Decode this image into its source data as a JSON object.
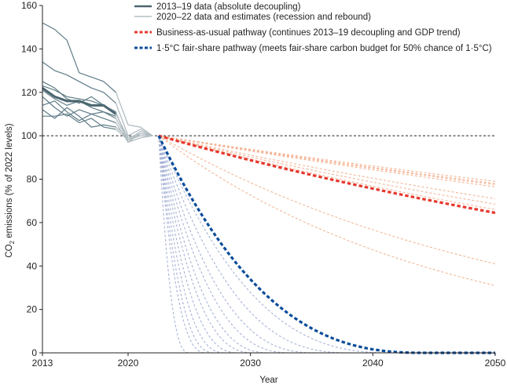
{
  "chart_data": {
    "type": "line",
    "xlabel": "Year",
    "ylabel_main": "CO",
    "ylabel_sub": "2",
    "ylabel_rest": " emissions (% of 2022 levels)",
    "xlim": [
      2013,
      2050
    ],
    "ylim": [
      0,
      160
    ],
    "x_ticks": [
      2013,
      2020,
      2030,
      2040,
      2050
    ],
    "y_ticks": [
      0,
      20,
      40,
      60,
      80,
      100,
      120,
      140,
      160
    ],
    "reference_line": {
      "y": 100,
      "style": "dashed",
      "color": "#231f20"
    },
    "colors": {
      "historical_thin": "#5f7c87",
      "historical_bold": "#4c6670",
      "recession": "#b3bec3",
      "bau_light": "#f3b596",
      "bau_bold": "#e5392f",
      "fairshare_light": "#a7b3d6",
      "fairshare_bold": "#0a4c9a"
    },
    "legend": [
      {
        "label": "2013–19 data (absolute decoupling)",
        "style": "solid",
        "color": "#4c6670"
      },
      {
        "label": "2020–22 data and estimates (recession and rebound)",
        "style": "solid",
        "color": "#b3bec3"
      },
      {
        "label": "Business-as-usual pathway (continues 2013–19 decoupling and GDP trend)",
        "style": "dashed",
        "color": "#e5392f"
      },
      {
        "label": "1·5°C fair-share pathway (meets fair-share carbon budget for 50% chance of 1·5°C)",
        "style": "dashed",
        "color": "#0a4c9a"
      }
    ],
    "series_historical": [
      {
        "x": [
          2013,
          2014,
          2015,
          2016,
          2017,
          2018,
          2019
        ],
        "y": [
          152,
          149,
          144,
          129,
          127,
          125,
          120
        ]
      },
      {
        "x": [
          2013,
          2014,
          2015,
          2016,
          2017,
          2018,
          2019
        ],
        "y": [
          134,
          130,
          128,
          125,
          122,
          120,
          115
        ]
      },
      {
        "x": [
          2013,
          2014,
          2015,
          2016,
          2017,
          2018,
          2019
        ],
        "y": [
          125,
          122,
          117,
          115,
          118,
          114,
          111
        ]
      },
      {
        "x": [
          2013,
          2014,
          2015,
          2016,
          2017,
          2018,
          2019
        ],
        "y": [
          123,
          121,
          118,
          117,
          116,
          114,
          110
        ]
      },
      {
        "x": [
          2013,
          2014,
          2015,
          2016,
          2017,
          2018,
          2019
        ],
        "y": [
          121,
          117,
          114,
          116,
          113,
          111,
          108
        ]
      },
      {
        "x": [
          2013,
          2014,
          2015,
          2016,
          2017,
          2018,
          2019
        ],
        "y": [
          118,
          113,
          109,
          112,
          110,
          108,
          106
        ]
      },
      {
        "x": [
          2013,
          2014,
          2015,
          2016,
          2017,
          2018,
          2019
        ],
        "y": [
          114,
          116,
          111,
          107,
          110,
          111,
          109
        ]
      },
      {
        "x": [
          2013,
          2014,
          2015,
          2016,
          2017,
          2018,
          2019
        ],
        "y": [
          109,
          109,
          110,
          106,
          108,
          104,
          103
        ]
      },
      {
        "x": [
          2013,
          2014,
          2015,
          2016,
          2017,
          2018,
          2019
        ],
        "y": [
          112,
          108,
          113,
          109,
          104,
          105,
          104
        ]
      }
    ],
    "series_historical_mean": {
      "x": [
        2013,
        2014,
        2015,
        2016,
        2017,
        2018,
        2019
      ],
      "y": [
        122,
        118,
        116,
        116,
        114,
        114,
        110
      ]
    },
    "series_recession": [
      {
        "x": [
          2019,
          2020,
          2021,
          2022
        ],
        "y": [
          120,
          105,
          104,
          100
        ]
      },
      {
        "x": [
          2019,
          2020,
          2021,
          2022
        ],
        "y": [
          115,
          100,
          103,
          100
        ]
      },
      {
        "x": [
          2019,
          2020,
          2021,
          2022
        ],
        "y": [
          111,
          97,
          101,
          100
        ]
      },
      {
        "x": [
          2019,
          2020,
          2021,
          2022
        ],
        "y": [
          110,
          99,
          100,
          100
        ]
      },
      {
        "x": [
          2019,
          2020,
          2021,
          2022
        ],
        "y": [
          108,
          98,
          102,
          100
        ]
      },
      {
        "x": [
          2019,
          2020,
          2021,
          2022
        ],
        "y": [
          106,
          97,
          99,
          100
        ]
      },
      {
        "x": [
          2019,
          2020,
          2021,
          2022
        ],
        "y": [
          104,
          99,
          101,
          100
        ]
      },
      {
        "x": [
          2019,
          2020,
          2021,
          2022
        ],
        "y": [
          103,
          98,
          100,
          100
        ]
      }
    ],
    "series_bau": {
      "start": [
        2022.5,
        100
      ],
      "end_values_2050": [
        79,
        78,
        77.5,
        76.5,
        71,
        68.5,
        66,
        41,
        31
      ],
      "bold_end_2050": 64.5
    },
    "series_fairshare": {
      "start": [
        2022.5,
        100
      ],
      "end_year_values": [
        2025.0,
        2026.4,
        2027.1,
        2028.0,
        2029.1,
        2030.4,
        2031.7,
        2033.5,
        2035.5,
        2038.3,
        2041.8
      ],
      "bold_end_year": 2044.5
    }
  }
}
